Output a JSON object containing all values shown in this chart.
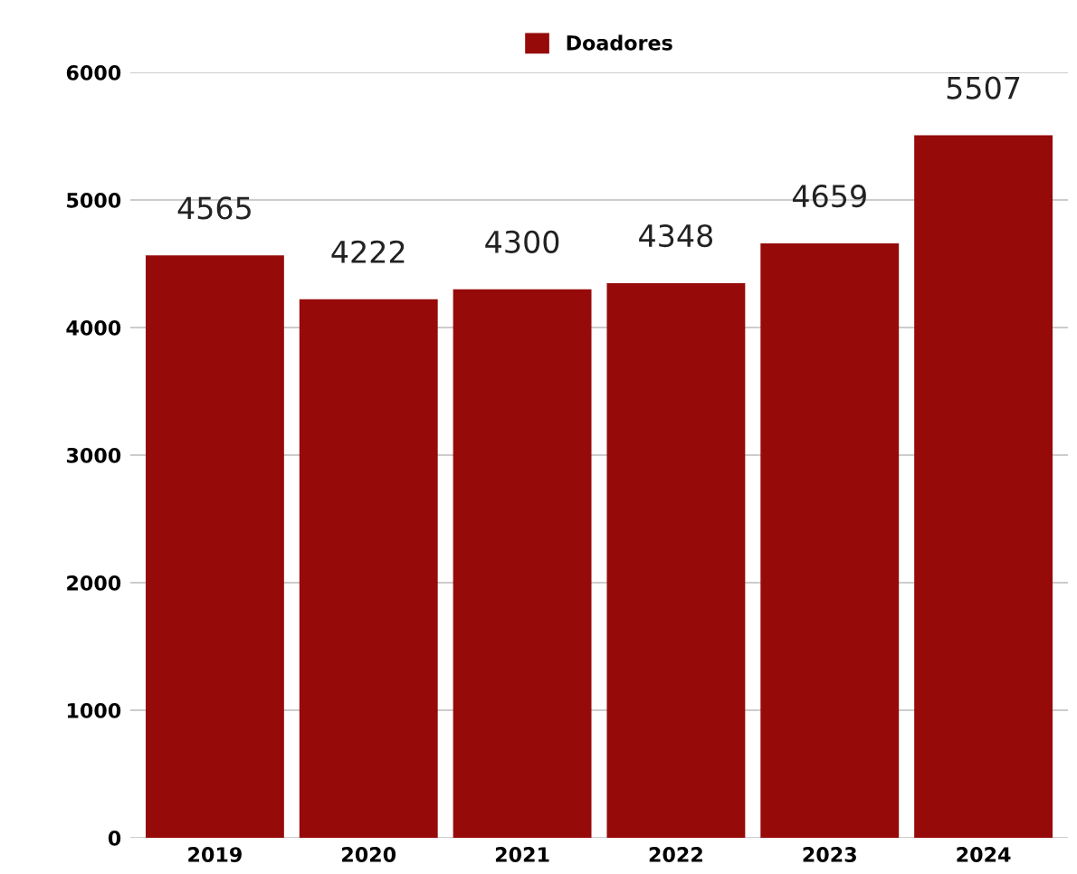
{
  "chart_data": {
    "type": "bar",
    "categories": [
      "2019",
      "2020",
      "2021",
      "2022",
      "2023",
      "2024"
    ],
    "series": [
      {
        "name": "Doadores",
        "color": "#960a0a",
        "values": [
          4565,
          4222,
          4300,
          4348,
          4659,
          5507
        ]
      }
    ],
    "ylim": [
      0,
      6000
    ],
    "yticks": [
      0,
      1000,
      2000,
      3000,
      4000,
      5000,
      6000
    ],
    "grid": "y",
    "legend": "top",
    "data_labels": true
  }
}
